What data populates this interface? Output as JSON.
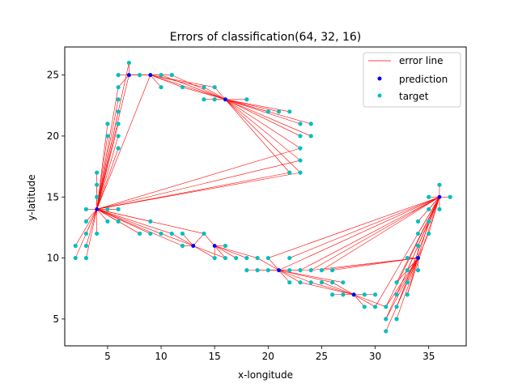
{
  "chart_data": {
    "type": "scatter",
    "title": "Errors of classification(64, 32, 16)",
    "xlabel": "x-longitude",
    "ylabel": "y-latitude",
    "xlim": [
      1,
      38.5
    ],
    "ylim": [
      2.8,
      27.3
    ],
    "xticks": [
      5,
      10,
      15,
      20,
      25,
      30,
      35
    ],
    "yticks": [
      5,
      10,
      15,
      20,
      25
    ],
    "grid": false,
    "legend": {
      "placement": "top-right",
      "entries": [
        {
          "label": "error line",
          "color": "#ff0000",
          "marker": "line"
        },
        {
          "label": "prediction",
          "color": "#0000ff",
          "marker": "dot"
        },
        {
          "label": "target",
          "color": "#00bfbf",
          "marker": "dot"
        }
      ]
    },
    "colors": {
      "error_line": "#ff0000",
      "prediction": "#0000ff",
      "target": "#00bfbf"
    },
    "prediction_points": [
      [
        4,
        14
      ],
      [
        7,
        25
      ],
      [
        9,
        25
      ],
      [
        16,
        23
      ],
      [
        13,
        11
      ],
      [
        15,
        11
      ],
      [
        21,
        9
      ],
      [
        28,
        7
      ],
      [
        34,
        10
      ],
      [
        36,
        15
      ]
    ],
    "error_pairs": [
      {
        "prediction": [
          4,
          14
        ],
        "targets": [
          [
            2,
            11
          ],
          [
            2,
            10
          ],
          [
            3,
            14
          ],
          [
            3,
            13
          ],
          [
            3,
            12
          ],
          [
            3,
            11
          ],
          [
            3,
            10
          ],
          [
            4,
            17
          ],
          [
            4,
            16
          ],
          [
            4,
            15
          ],
          [
            4,
            12
          ],
          [
            5,
            21
          ],
          [
            5,
            20
          ],
          [
            5,
            14
          ],
          [
            5,
            13
          ],
          [
            6,
            24
          ],
          [
            6,
            23
          ],
          [
            6,
            22
          ],
          [
            6,
            21
          ],
          [
            6,
            20
          ],
          [
            6,
            19
          ],
          [
            6,
            14
          ],
          [
            6,
            13
          ],
          [
            7,
            26
          ],
          [
            7,
            25
          ],
          [
            9,
            25
          ],
          [
            9,
            13
          ],
          [
            8,
            12
          ],
          [
            9,
            12
          ],
          [
            10,
            12
          ],
          [
            11,
            12
          ],
          [
            12,
            11
          ],
          [
            14,
            12
          ],
          [
            22,
            17
          ],
          [
            23,
            17
          ],
          [
            23,
            18
          ],
          [
            23,
            19
          ]
        ]
      },
      {
        "prediction": [
          7,
          25
        ],
        "targets": [
          [
            6,
            25
          ],
          [
            7,
            26
          ],
          [
            8,
            25
          ],
          [
            9,
            25
          ],
          [
            10,
            25
          ],
          [
            6,
            24
          ]
        ]
      },
      {
        "prediction": [
          9,
          25
        ],
        "targets": [
          [
            8,
            25
          ],
          [
            10,
            25
          ],
          [
            11,
            25
          ],
          [
            10,
            24
          ],
          [
            12,
            24
          ],
          [
            14,
            24
          ],
          [
            15,
            24
          ]
        ]
      },
      {
        "prediction": [
          16,
          23
        ],
        "targets": [
          [
            14,
            24
          ],
          [
            14,
            23
          ],
          [
            15,
            24
          ],
          [
            15,
            23
          ],
          [
            16,
            23
          ],
          [
            18,
            23
          ],
          [
            20,
            22
          ],
          [
            21,
            22
          ],
          [
            22,
            22
          ],
          [
            23,
            21
          ],
          [
            24,
            21
          ],
          [
            23,
            20
          ],
          [
            24,
            20
          ],
          [
            23,
            19
          ],
          [
            23,
            18
          ],
          [
            22,
            17
          ],
          [
            23,
            17
          ],
          [
            9,
            25
          ],
          [
            10,
            25
          ],
          [
            11,
            25
          ],
          [
            12,
            24
          ]
        ]
      },
      {
        "prediction": [
          13,
          11
        ],
        "targets": [
          [
            10,
            12
          ],
          [
            11,
            12
          ],
          [
            12,
            11
          ],
          [
            12,
            12
          ],
          [
            13,
            11
          ],
          [
            14,
            12
          ],
          [
            15,
            10
          ],
          [
            16,
            10
          ]
        ]
      },
      {
        "prediction": [
          15,
          11
        ],
        "targets": [
          [
            14,
            12
          ],
          [
            15,
            10
          ],
          [
            16,
            11
          ],
          [
            16,
            10
          ],
          [
            17,
            10
          ],
          [
            18,
            10
          ],
          [
            19,
            10
          ]
        ]
      },
      {
        "prediction": [
          21,
          9
        ],
        "targets": [
          [
            18,
            9
          ],
          [
            19,
            9
          ],
          [
            20,
            9
          ],
          [
            21,
            9
          ],
          [
            22,
            9
          ],
          [
            23,
            9
          ],
          [
            24,
            9
          ],
          [
            22,
            8
          ],
          [
            23,
            8
          ],
          [
            24,
            8
          ],
          [
            20,
            10
          ],
          [
            19,
            10
          ],
          [
            26,
            8
          ],
          [
            27,
            8
          ]
        ]
      },
      {
        "prediction": [
          28,
          7
        ],
        "targets": [
          [
            23,
            8
          ],
          [
            24,
            8
          ],
          [
            25,
            8
          ],
          [
            26,
            7
          ],
          [
            27,
            7
          ],
          [
            28,
            7
          ],
          [
            29,
            7
          ],
          [
            30,
            7
          ],
          [
            29,
            6
          ],
          [
            30,
            6
          ],
          [
            31,
            6
          ],
          [
            26,
            8
          ]
        ]
      },
      {
        "prediction": [
          34,
          10
        ],
        "targets": [
          [
            31,
            4
          ],
          [
            31,
            5
          ],
          [
            31,
            6
          ],
          [
            32,
            5
          ],
          [
            32,
            6
          ],
          [
            32,
            7
          ],
          [
            32,
            8
          ],
          [
            33,
            7
          ],
          [
            33,
            8
          ],
          [
            33,
            9
          ],
          [
            33,
            10
          ],
          [
            34,
            9
          ],
          [
            34,
            10
          ],
          [
            34,
            11
          ],
          [
            35,
            12
          ],
          [
            35,
            13
          ],
          [
            24,
            9
          ],
          [
            25,
            9
          ],
          [
            26,
            9
          ]
        ]
      },
      {
        "prediction": [
          36,
          15
        ],
        "targets": [
          [
            35,
            14
          ],
          [
            35,
            13
          ],
          [
            35,
            12
          ],
          [
            34,
            12
          ],
          [
            34,
            11
          ],
          [
            34,
            13
          ],
          [
            35,
            15
          ],
          [
            36,
            16
          ],
          [
            36,
            14
          ],
          [
            37,
            15
          ],
          [
            30,
            6
          ],
          [
            31,
            6
          ],
          [
            32,
            6
          ],
          [
            31,
            5
          ],
          [
            33,
            7
          ],
          [
            32,
            8
          ],
          [
            33,
            9
          ],
          [
            23,
            9
          ],
          [
            24,
            9
          ],
          [
            25,
            9
          ],
          [
            22,
            10
          ],
          [
            20,
            10
          ],
          [
            21,
            9
          ]
        ]
      }
    ]
  }
}
